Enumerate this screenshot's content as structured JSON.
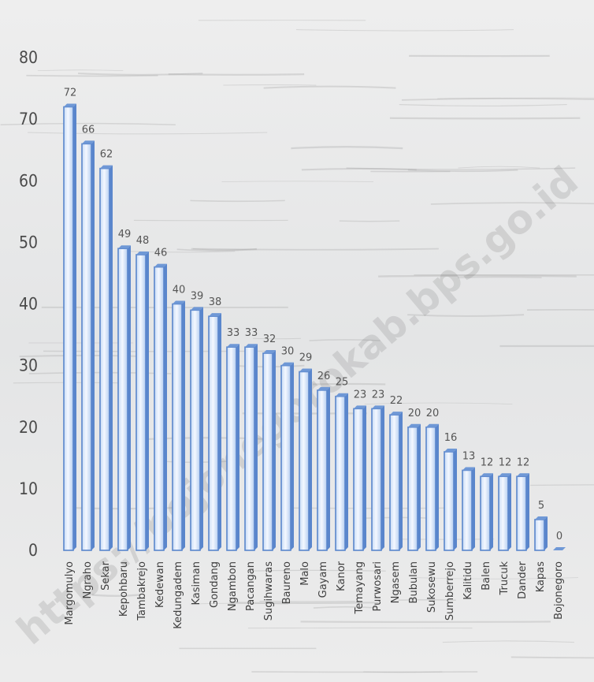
{
  "watermark": "https://bojonegorokab.bps.go.id",
  "chart_data": {
    "type": "bar",
    "categories": [
      "Margomulyo",
      "Ngraho",
      "Sekar",
      "Kepohbaru",
      "Tambakrejo",
      "Kedewan",
      "Kedungadem",
      "Kasiman",
      "Gondang",
      "Ngambon",
      "Pacangan",
      "Sugihwaras",
      "Baureno",
      "Malo",
      "Gayam",
      "Kanor",
      "Temayang",
      "Purwosari",
      "Ngasem",
      "Bubulan",
      "Sukosewu",
      "Sumberrejo",
      "Kalitidu",
      "Balen",
      "Trucuk",
      "Dander",
      "Kapas",
      "Bojonegoro"
    ],
    "values": [
      72,
      66,
      62,
      49,
      48,
      46,
      40,
      39,
      38,
      33,
      33,
      32,
      30,
      29,
      26,
      25,
      23,
      23,
      22,
      20,
      20,
      16,
      13,
      12,
      12,
      12,
      5,
      0
    ],
    "ylim": [
      0,
      80
    ],
    "yticks": [
      0,
      10,
      20,
      30,
      40,
      50,
      60,
      70,
      80
    ],
    "title": "",
    "xlabel": "",
    "ylabel": "",
    "grid": false,
    "legend": "none",
    "colors": {
      "bar_fill_light": "#f4f8ff",
      "bar_fill_mid": "#c7dbf6",
      "bar_edge": "#5a86cc",
      "bar_top": "#6f98d6"
    }
  }
}
